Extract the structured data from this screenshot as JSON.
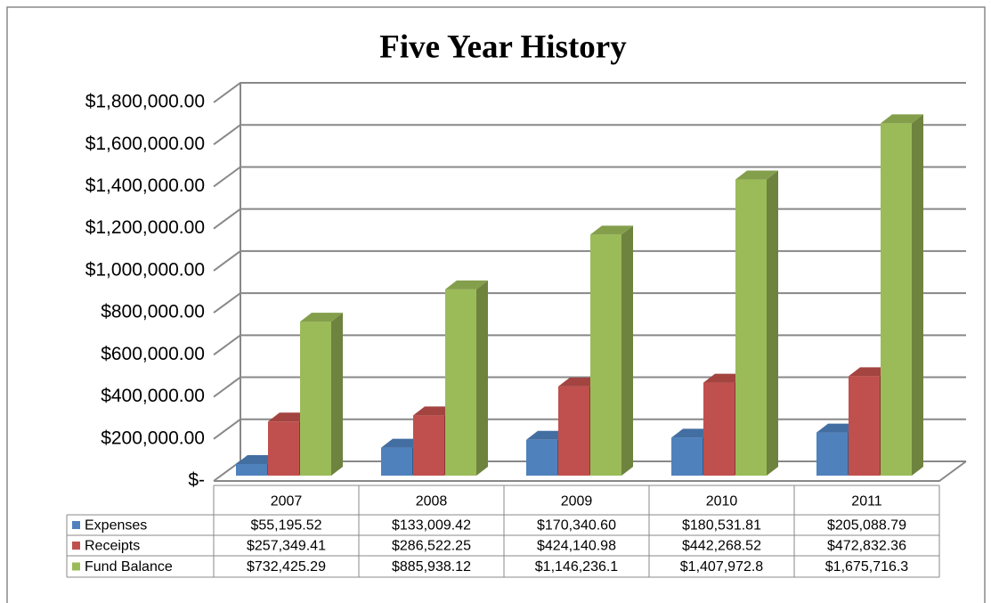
{
  "chart_data": {
    "type": "bar3d",
    "title": "Five Year History",
    "categories": [
      "2007",
      "2008",
      "2009",
      "2010",
      "2011"
    ],
    "series": [
      {
        "name": "Expenses",
        "color": "#4f81bd",
        "values": [
          55195.52,
          133009.42,
          170340.6,
          180531.81,
          205088.79
        ],
        "value_labels": [
          "$55,195.52",
          "$133,009.42",
          "$170,340.60",
          "$180,531.81",
          "$205,088.79"
        ]
      },
      {
        "name": "Receipts",
        "color": "#c0504d",
        "values": [
          257349.41,
          286522.25,
          424140.98,
          442268.52,
          472832.36
        ],
        "value_labels": [
          "$257,349.41",
          "$286,522.25",
          "$424,140.98",
          "$442,268.52",
          "$472,832.36"
        ]
      },
      {
        "name": "Fund Balance",
        "color": "#9bbb59",
        "values": [
          732425.29,
          885938.12,
          1146236.1,
          1407972.8,
          1675716.3
        ],
        "value_labels": [
          "$732,425.29",
          "$885,938.12",
          "$1,146,236.1",
          "$1,407,972.8",
          "$1,675,716.3"
        ]
      }
    ],
    "ylim": [
      0,
      1800000
    ],
    "yticks": [
      {
        "value": 0,
        "label": "$-"
      },
      {
        "value": 200000,
        "label": "$200,000.00"
      },
      {
        "value": 400000,
        "label": "$400,000.00"
      },
      {
        "value": 600000,
        "label": "$600,000.00"
      },
      {
        "value": 800000,
        "label": "$800,000.00"
      },
      {
        "value": 1000000,
        "label": "$1,000,000.00"
      },
      {
        "value": 1200000,
        "label": "$1,200,000.00"
      },
      {
        "value": 1400000,
        "label": "$1,400,000.00"
      },
      {
        "value": 1600000,
        "label": "$1,600,000.00"
      },
      {
        "value": 1800000,
        "label": "$1,800,000.00"
      }
    ],
    "grid": true,
    "legend": "table"
  }
}
